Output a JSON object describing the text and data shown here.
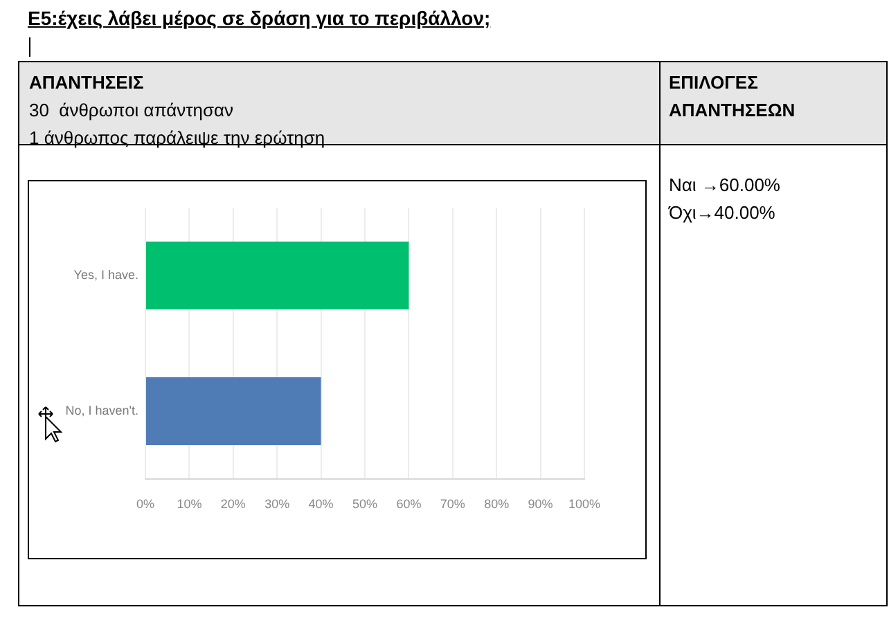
{
  "chart_data": {
    "type": "bar",
    "orientation": "horizontal",
    "title": "E5:έχεις λάβει μέρος σε δράση για το περιβάλλον;",
    "categories": [
      "Yes, I have.",
      "No, I haven't."
    ],
    "values": [
      60,
      40
    ],
    "colors": [
      "#00bf6f",
      "#507cb6"
    ],
    "xlim": [
      0,
      100
    ],
    "xticks": [
      {
        "value": 0,
        "label": "0%"
      },
      {
        "value": 10,
        "label": "10%"
      },
      {
        "value": 20,
        "label": "20%"
      },
      {
        "value": 30,
        "label": "30%"
      },
      {
        "value": 40,
        "label": "40%"
      },
      {
        "value": 50,
        "label": "50%"
      },
      {
        "value": 60,
        "label": "60%"
      },
      {
        "value": 70,
        "label": "70%"
      },
      {
        "value": 80,
        "label": "80%"
      },
      {
        "value": 90,
        "label": "90%"
      },
      {
        "value": 100,
        "label": "100%"
      }
    ],
    "grid": "x",
    "annotations": [
      "ΑΠΑΝΤΗΣΕΙΣ",
      "30  άνθρωποι απάντησαν",
      "1 άνθρωπος παράλειψε την ερώτηση",
      "ΕΠΙΛΟΓΕΣ ΑΠΑΝΤΗΣΕΩΝ",
      "Ναι →60.00%",
      "Όχι→40.00%"
    ]
  }
}
